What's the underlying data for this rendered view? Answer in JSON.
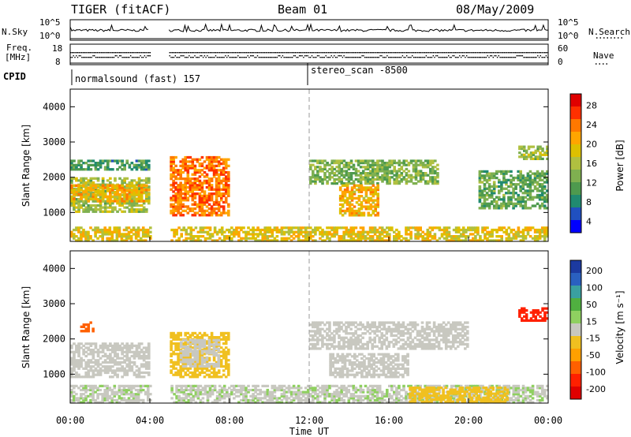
{
  "header": {
    "radar": "TIGER (fitACF)",
    "beam": "Beam 01",
    "date": "08/May/2009"
  },
  "strips": {
    "nsky_label": "N.Sky",
    "nsky_ticks": [
      "10^5",
      "10^0"
    ],
    "nsearch_label": "N.Search",
    "nsearch_ticks": [
      "10^5",
      "10^0"
    ],
    "freq_label_1": "Freq.",
    "freq_label_2": "[MHz]",
    "freq_ticks": [
      "18",
      "8"
    ],
    "nave_label": "Nave",
    "nave_ticks": [
      "60",
      "0"
    ],
    "cpid_label": "CPID",
    "cpid_1": "normalsound (fast) 157",
    "cpid_2": "stereo_scan -8500",
    "data_gap_hours": [
      4.0,
      4.95
    ]
  },
  "chart_data": [
    {
      "type": "heatmap",
      "panel": "power",
      "ylabel": "Slant Range [km]",
      "xlabel": "",
      "xlim_hours": [
        0,
        24
      ],
      "ylim_km": [
        180,
        4500
      ],
      "y_ticks": [
        "4000",
        "3000",
        "2000",
        "1000"
      ],
      "colorbar": {
        "label": "Power [dB]",
        "ticks": [
          "28",
          "24",
          "20",
          "16",
          "12",
          "8",
          "4"
        ],
        "colors": [
          "#e00000",
          "#ff3000",
          "#ff7800",
          "#ffa500",
          "#ddc000",
          "#b0c040",
          "#7fb050",
          "#4e9a4e",
          "#208a70",
          "#2050c0",
          "#0000ff"
        ]
      },
      "echo_regions": [
        {
          "t0": 0.0,
          "t1": 4.0,
          "r0": 1000,
          "r1": 2000,
          "level": 14
        },
        {
          "t0": 0.0,
          "t1": 4.0,
          "r0": 2200,
          "r1": 2500,
          "level": 8
        },
        {
          "t0": 0.0,
          "t1": 4.0,
          "r0": 1300,
          "r1": 1800,
          "level": 20
        },
        {
          "t0": 5.0,
          "t1": 8.0,
          "r0": 900,
          "r1": 2600,
          "level": 24
        },
        {
          "t0": 12.0,
          "t1": 18.5,
          "r0": 1800,
          "r1": 2500,
          "level": 12
        },
        {
          "t0": 13.5,
          "t1": 15.5,
          "r0": 900,
          "r1": 1800,
          "level": 20
        },
        {
          "t0": 20.5,
          "t1": 24.0,
          "r0": 1100,
          "r1": 2200,
          "level": 10
        },
        {
          "t0": 22.5,
          "t1": 24.0,
          "r0": 2500,
          "r1": 2900,
          "level": 14
        },
        {
          "t0": 0.0,
          "t1": 24.0,
          "r0": 180,
          "r1": 600,
          "level": 18
        }
      ]
    },
    {
      "type": "heatmap",
      "panel": "velocity",
      "ylabel": "Slant Range [km]",
      "xlabel": "Time UT",
      "xlim_hours": [
        0,
        24
      ],
      "ylim_km": [
        180,
        4500
      ],
      "y_ticks": [
        "4000",
        "3000",
        "2000",
        "1000"
      ],
      "x_ticks": [
        "00:00",
        "04:00",
        "08:00",
        "12:00",
        "16:00",
        "20:00",
        "00:00"
      ],
      "colorbar": {
        "label": "Velocity [m s⁻¹]",
        "ticks": [
          "200",
          "100",
          "50",
          "15",
          "-15",
          "-50",
          "-100",
          "-200"
        ],
        "colors": [
          "#1c3aa0",
          "#2a60c0",
          "#3aa0a0",
          "#50b040",
          "#8fd060",
          "#c8c8c0",
          "#f0c020",
          "#ffa000",
          "#ff6000",
          "#ff2000",
          "#e00000"
        ]
      },
      "echo_regions": [
        {
          "t0": 0.0,
          "t1": 4.0,
          "r0": 900,
          "r1": 1900,
          "level": 0
        },
        {
          "t0": 0.5,
          "t1": 1.2,
          "r0": 2200,
          "r1": 2500,
          "level": -150
        },
        {
          "t0": 5.0,
          "t1": 8.0,
          "r0": 900,
          "r1": 2200,
          "level": -60
        },
        {
          "t0": 5.5,
          "t1": 7.5,
          "r0": 1200,
          "r1": 2000,
          "level": 0
        },
        {
          "t0": 12.0,
          "t1": 20.0,
          "r0": 1700,
          "r1": 2500,
          "level": 0
        },
        {
          "t0": 13.0,
          "t1": 17.0,
          "r0": 900,
          "r1": 1600,
          "level": 0
        },
        {
          "t0": 22.5,
          "t1": 24.0,
          "r0": 2500,
          "r1": 2900,
          "level": -180
        },
        {
          "t0": 0.0,
          "t1": 24.0,
          "r0": 180,
          "r1": 700,
          "level": 20
        },
        {
          "t0": 17.0,
          "t1": 22.0,
          "r0": 200,
          "r1": 650,
          "level": -50
        }
      ]
    }
  ]
}
